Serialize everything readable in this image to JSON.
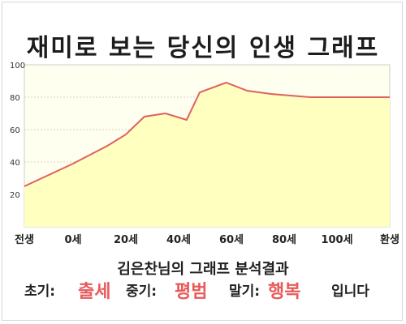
{
  "title": "재미로 보는 당신의 인생 그래프",
  "chart_data": {
    "type": "area",
    "title": "재미로 보는 당신의 인생 그래프",
    "xlabel": "",
    "ylabel": "",
    "ylim": [
      0,
      100
    ],
    "yticks": [
      20,
      40,
      60,
      80,
      100
    ],
    "x_tick_labels": [
      "전생",
      "0세",
      "20세",
      "40세",
      "60세",
      "80세",
      "100세",
      "환생"
    ],
    "grid": true,
    "line_color": "#e06060",
    "fill_color": "#ffffc0",
    "background_color": "#fffff0",
    "series": [
      {
        "x": [
          "전생",
          "0세",
          "13세",
          "20세",
          "27세",
          "35세",
          "43세",
          "48세",
          "58세",
          "66세",
          "75세",
          "90세",
          "100세",
          "환생"
        ],
        "values": [
          25,
          39,
          50,
          57,
          68,
          70,
          66,
          83,
          89,
          84,
          82,
          80,
          80,
          80
        ]
      }
    ]
  },
  "caption": "김은찬님의 그래프 분석결과",
  "summary": {
    "early_label": "초기:",
    "early_value": "출세",
    "mid_label": "중기:",
    "mid_value": "평범",
    "late_label": "말기:",
    "late_value": "행복",
    "ending": "입니다"
  }
}
